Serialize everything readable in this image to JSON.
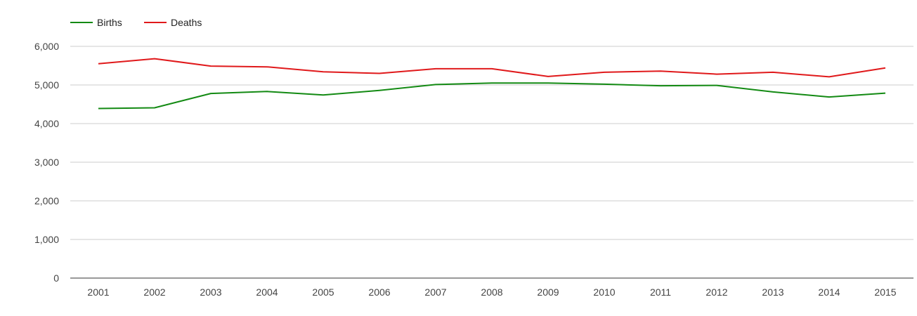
{
  "chart_data": {
    "type": "line",
    "title": "",
    "xlabel": "",
    "ylabel": "",
    "categories": [
      "2001",
      "2002",
      "2003",
      "2004",
      "2005",
      "2006",
      "2007",
      "2008",
      "2009",
      "2010",
      "2011",
      "2012",
      "2013",
      "2014",
      "2015"
    ],
    "ylim": [
      0,
      6000
    ],
    "yticks": [
      0,
      1000,
      2000,
      3000,
      4000,
      5000,
      6000
    ],
    "ytick_labels": [
      "0",
      "1,000",
      "2,000",
      "3,000",
      "4,000",
      "5,000",
      "6,000"
    ],
    "grid": true,
    "legend_position": "top-left",
    "series": [
      {
        "name": "Births",
        "color": "#138a13",
        "values": [
          4390,
          4410,
          4780,
          4830,
          4740,
          4860,
          5010,
          5050,
          5050,
          5020,
          4980,
          4990,
          4820,
          4690,
          4790
        ]
      },
      {
        "name": "Deaths",
        "color": "#e0191b",
        "values": [
          5550,
          5680,
          5490,
          5470,
          5340,
          5300,
          5420,
          5420,
          5220,
          5330,
          5360,
          5280,
          5330,
          5210,
          5440
        ]
      }
    ]
  }
}
